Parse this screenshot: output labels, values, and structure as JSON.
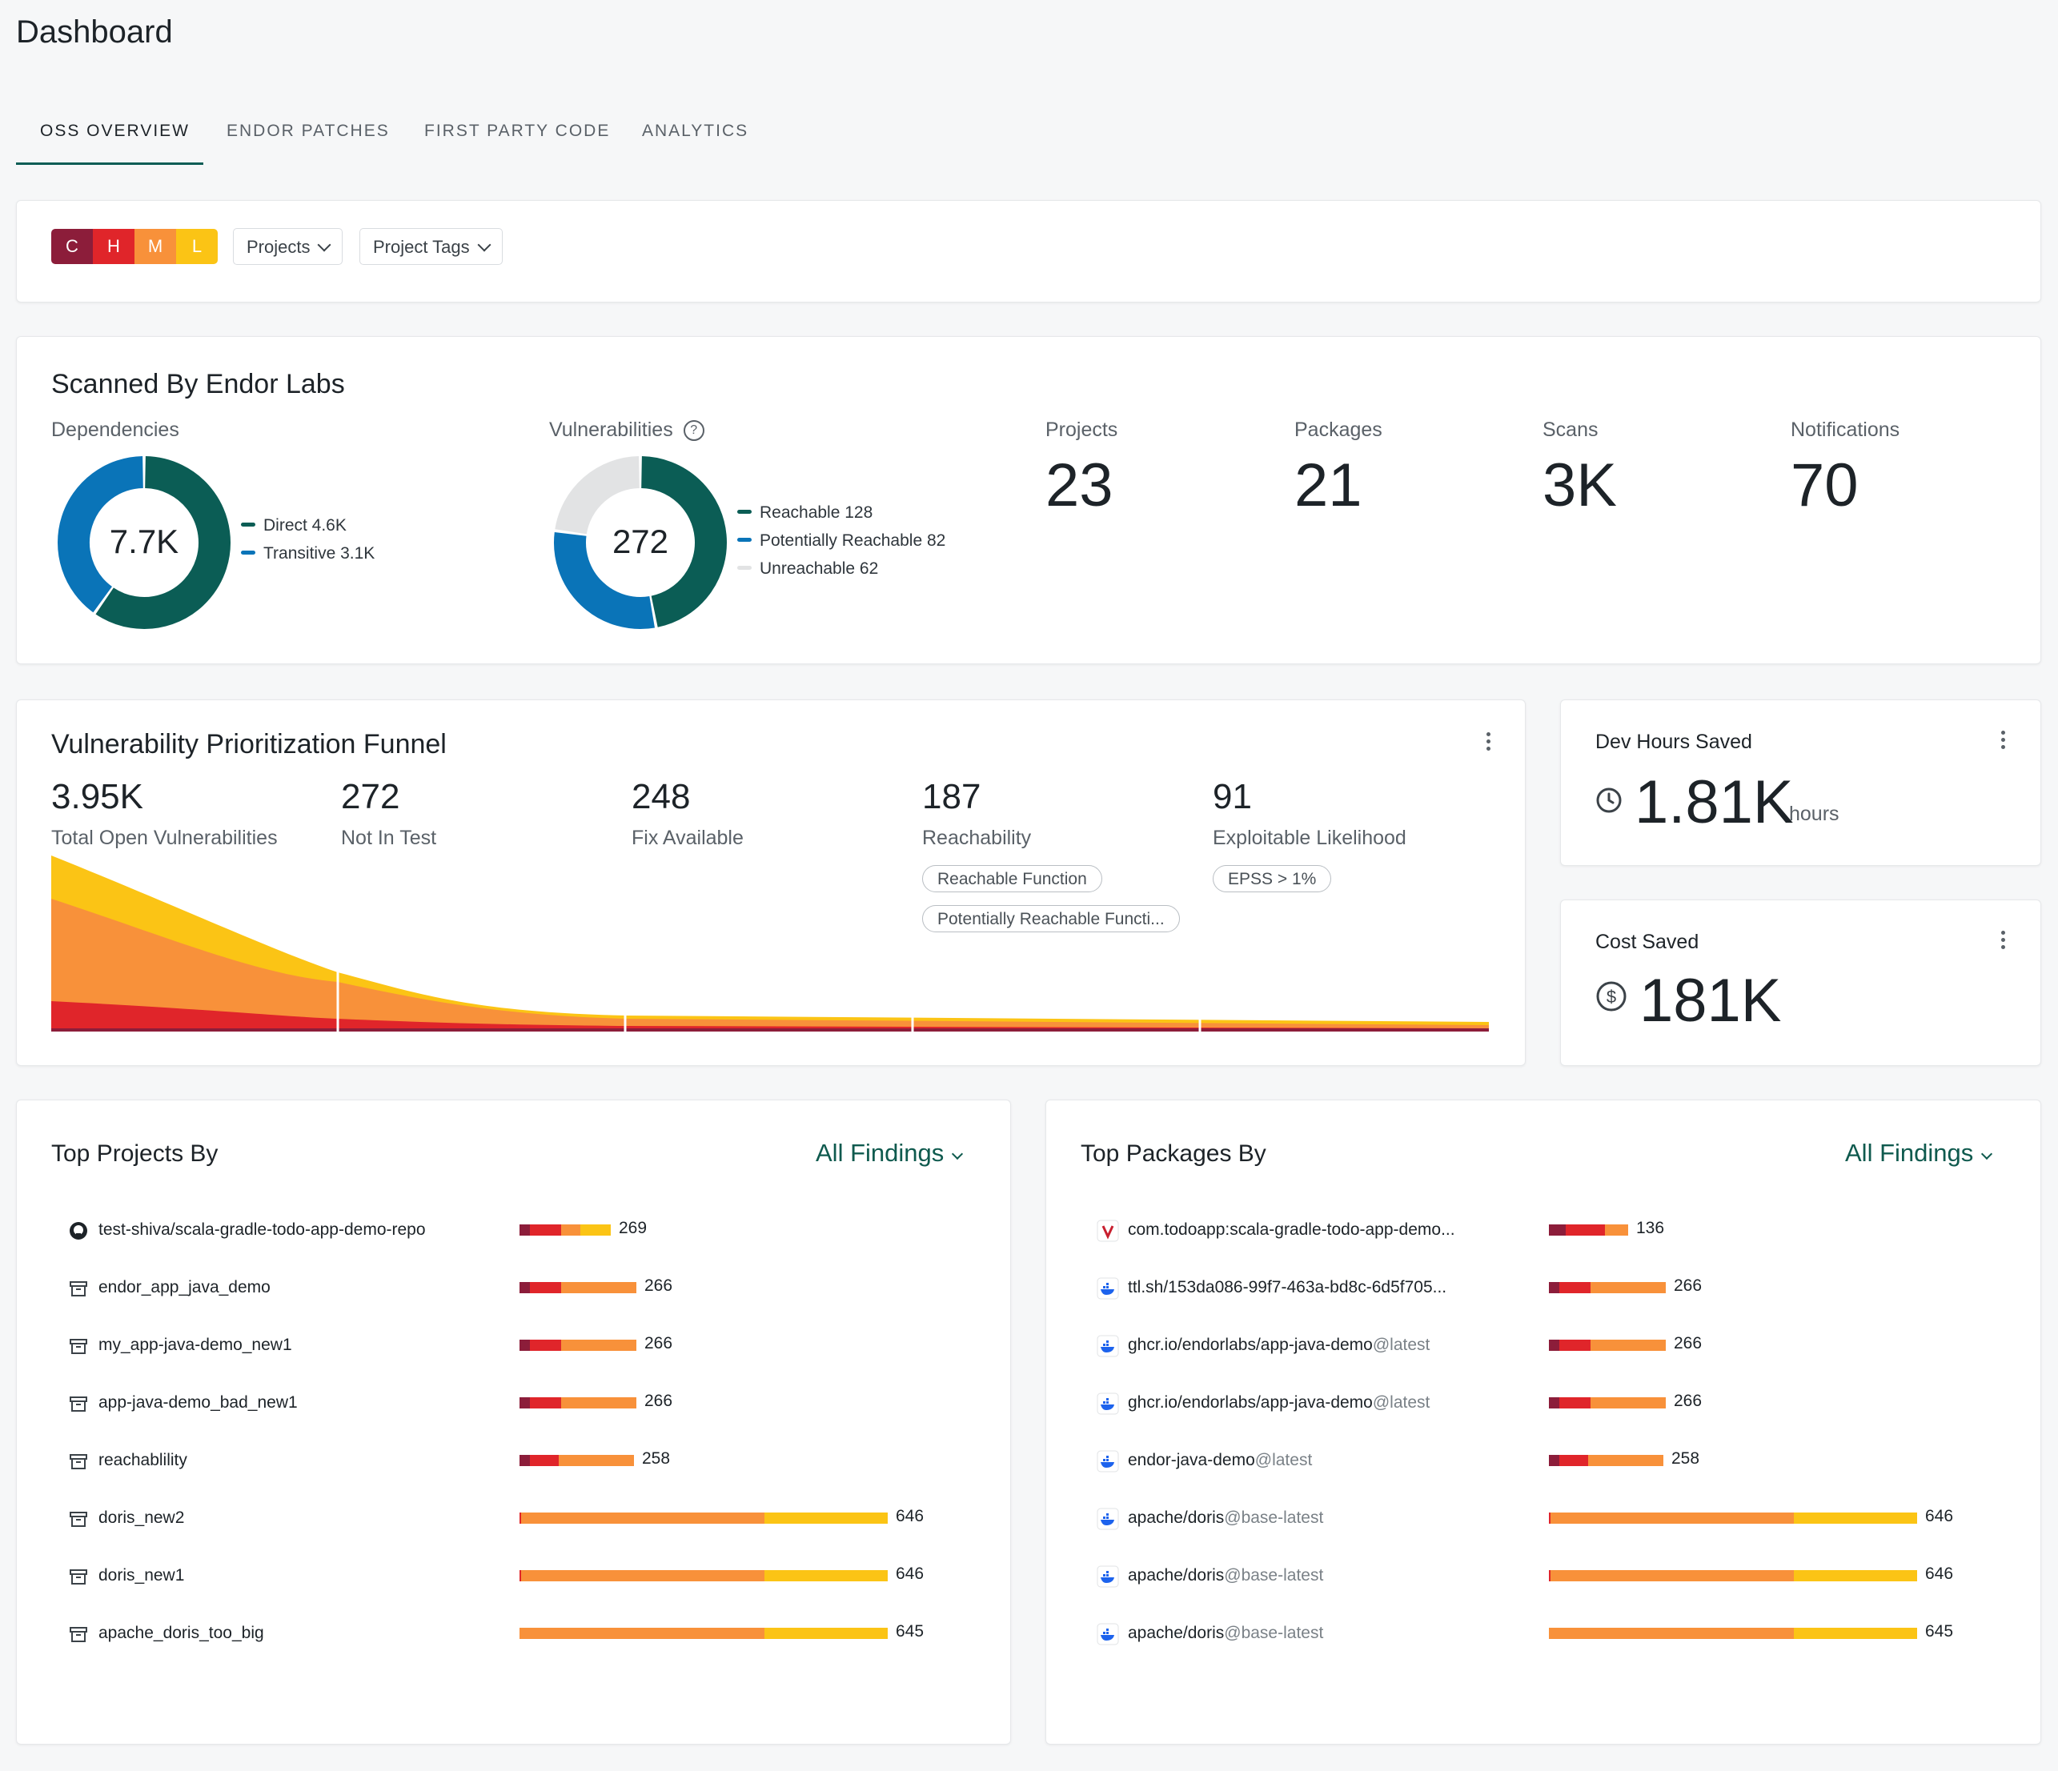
{
  "page": {
    "title": "Dashboard"
  },
  "tabs": [
    {
      "label": "OSS OVERVIEW",
      "active": true
    },
    {
      "label": "ENDOR PATCHES"
    },
    {
      "label": "FIRST PARTY CODE"
    },
    {
      "label": "ANALYTICS"
    }
  ],
  "filters": {
    "severity": [
      {
        "label": "C",
        "color": "#8c1d3a"
      },
      {
        "label": "H",
        "color": "#e0252a"
      },
      {
        "label": "M",
        "color": "#f8913a"
      },
      {
        "label": "L",
        "color": "#fbc415"
      }
    ],
    "projects_label": "Projects",
    "project_tags_label": "Project Tags"
  },
  "scanned": {
    "title": "Scanned By Endor Labs",
    "dependencies": {
      "label": "Dependencies",
      "total": "7.7K",
      "segments": [
        {
          "label": "Direct 4.6K",
          "value": 4.6,
          "color": "#0b5d55"
        },
        {
          "label": "Transitive 3.1K",
          "value": 3.1,
          "color": "#0a74b8"
        }
      ]
    },
    "vulnerabilities": {
      "label": "Vulnerabilities",
      "total": "272",
      "segments": [
        {
          "label": "Reachable 128",
          "value": 128,
          "color": "#0b5d55"
        },
        {
          "label": "Potentially Reachable 82",
          "value": 82,
          "color": "#0a74b8"
        },
        {
          "label": "Unreachable 62",
          "value": 62,
          "color": "#e2e3e4"
        }
      ]
    },
    "stats": [
      {
        "label": "Projects",
        "value": "23"
      },
      {
        "label": "Packages",
        "value": "21"
      },
      {
        "label": "Scans",
        "value": "3K"
      },
      {
        "label": "Notifications",
        "value": "70"
      }
    ]
  },
  "funnel": {
    "title": "Vulnerability Prioritization Funnel",
    "stages": [
      {
        "value": "3.95K",
        "label": "Total Open Vulnerabilities",
        "chips": []
      },
      {
        "value": "272",
        "label": "Not In Test",
        "chips": []
      },
      {
        "value": "248",
        "label": "Fix Available",
        "chips": []
      },
      {
        "value": "187",
        "label": "Reachability",
        "chips": [
          "Reachable Function",
          "Potentially Reachable Functi..."
        ]
      },
      {
        "value": "91",
        "label": "Exploitable Likelihood",
        "chips": [
          "EPSS > 1%"
        ]
      }
    ]
  },
  "dev_hours": {
    "label": "Dev Hours Saved",
    "value": "1.81K",
    "unit": "hours"
  },
  "cost": {
    "label": "Cost Saved",
    "value": "181K"
  },
  "top_projects": {
    "title": "Top Projects By",
    "filter": "All Findings",
    "rows": [
      {
        "name": "test-shiva/scala-gradle-todo-app-demo-repo",
        "icon": "github-icon",
        "count": "269",
        "c": 13,
        "h": 39,
        "m": 24,
        "l": 38
      },
      {
        "name": "endor_app_java_demo",
        "icon": "archive-icon",
        "count": "266",
        "c": 13,
        "h": 39,
        "m": 94,
        "l": 0
      },
      {
        "name": "my_app-java-demo_new1",
        "icon": "archive-icon",
        "count": "266",
        "c": 13,
        "h": 39,
        "m": 94,
        "l": 0
      },
      {
        "name": "app-java-demo_bad_new1",
        "icon": "archive-icon",
        "count": "266",
        "c": 13,
        "h": 39,
        "m": 94,
        "l": 0
      },
      {
        "name": "reachablility",
        "icon": "archive-icon",
        "count": "258",
        "c": 13,
        "h": 36,
        "m": 94,
        "l": 0
      },
      {
        "name": "doris_new2",
        "icon": "archive-icon",
        "count": "646",
        "c": 0,
        "h": 2,
        "m": 304,
        "l": 154
      },
      {
        "name": "doris_new1",
        "icon": "archive-icon",
        "count": "646",
        "c": 0,
        "h": 2,
        "m": 304,
        "l": 154
      },
      {
        "name": "apache_doris_too_big",
        "icon": "archive-icon",
        "count": "645",
        "c": 0,
        "h": 0,
        "m": 306,
        "l": 154
      }
    ]
  },
  "top_packages": {
    "title": "Top Packages By",
    "filter": "All Findings",
    "rows": [
      {
        "name": "com.todoapp:scala-gradle-todo-app-demo...",
        "tag": "",
        "icon": "maven-icon",
        "count": "136",
        "c": 21,
        "h": 49,
        "m": 29,
        "l": 0
      },
      {
        "name": "ttl.sh/153da086-99f7-463a-bd8c-6d5f705...",
        "tag": "",
        "icon": "docker-icon",
        "count": "266",
        "c": 13,
        "h": 39,
        "m": 94,
        "l": 0
      },
      {
        "name": "ghcr.io/endorlabs/app-java-demo",
        "tag": "@latest",
        "icon": "docker-icon",
        "count": "266",
        "c": 13,
        "h": 39,
        "m": 94,
        "l": 0
      },
      {
        "name": "ghcr.io/endorlabs/app-java-demo",
        "tag": "@latest",
        "icon": "docker-icon",
        "count": "266",
        "c": 13,
        "h": 39,
        "m": 94,
        "l": 0
      },
      {
        "name": "endor-java-demo",
        "tag": "@latest",
        "icon": "docker-icon",
        "count": "258",
        "c": 13,
        "h": 36,
        "m": 94,
        "l": 0
      },
      {
        "name": "apache/doris",
        "tag": "@base-latest",
        "icon": "docker-icon",
        "count": "646",
        "c": 0,
        "h": 2,
        "m": 304,
        "l": 154
      },
      {
        "name": "apache/doris",
        "tag": "@base-latest",
        "icon": "docker-icon",
        "count": "646",
        "c": 0,
        "h": 2,
        "m": 304,
        "l": 154
      },
      {
        "name": "apache/doris",
        "tag": "@base-latest",
        "icon": "docker-icon",
        "count": "645",
        "c": 0,
        "h": 0,
        "m": 306,
        "l": 154
      }
    ]
  },
  "colors": {
    "critical": "#8c1d3a",
    "high": "#e0252a",
    "medium": "#f8913a",
    "low": "#fbc415",
    "teal": "#0b5d55",
    "blue": "#0a74b8",
    "tab_underline": "#0b5d55"
  }
}
